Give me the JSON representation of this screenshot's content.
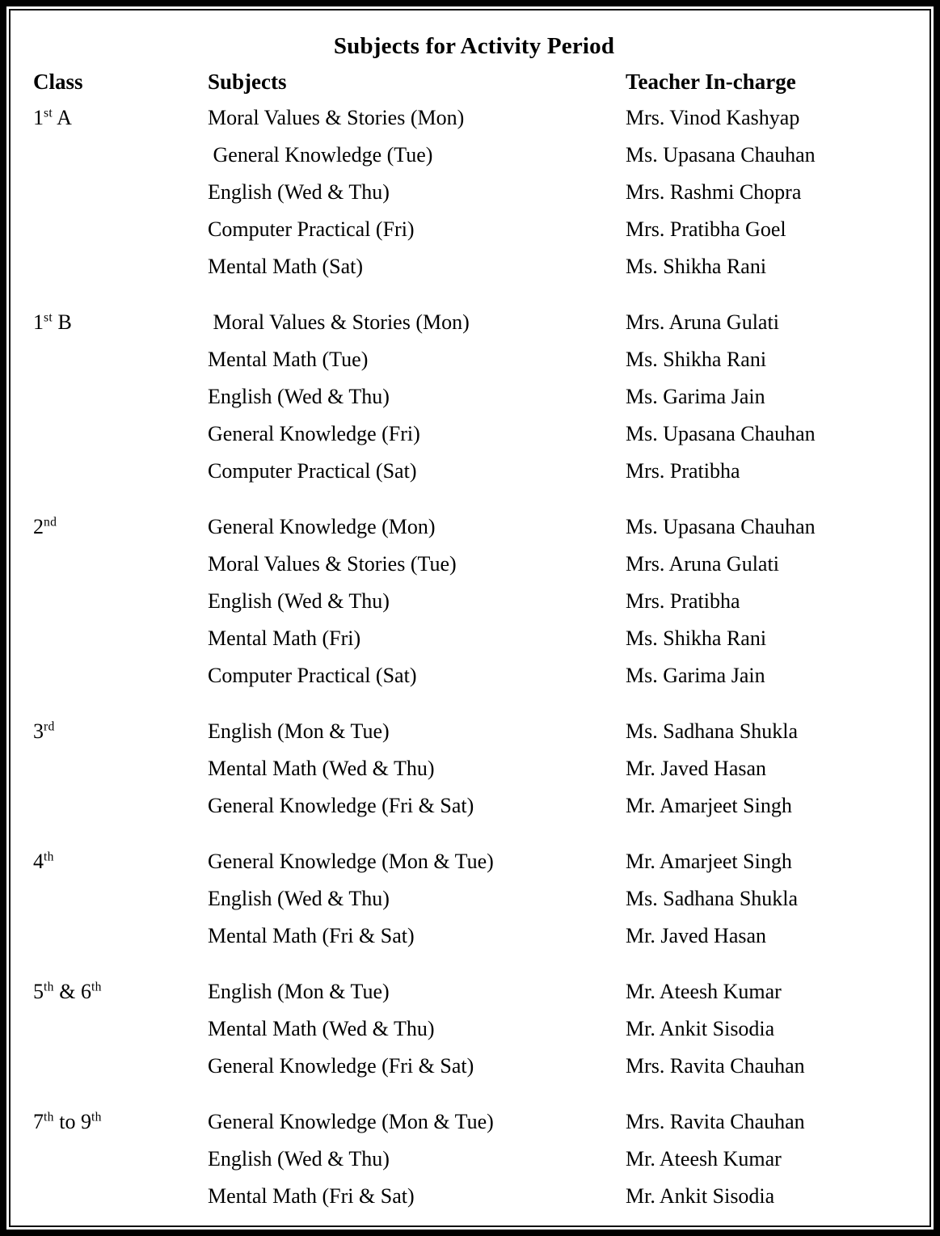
{
  "title": "Subjects for Activity Period",
  "headers": {
    "class": "Class",
    "subjects": "Subjects",
    "teacher": "Teacher In-charge"
  },
  "colors": {
    "text": "#000000",
    "background": "#ffffff",
    "border": "#000000"
  },
  "blocks": [
    {
      "class_label": [
        {
          "text": "1"
        },
        {
          "sup": "st"
        },
        {
          "text": " A"
        }
      ],
      "rows": [
        {
          "subject": "Moral Values & Stories (Mon)",
          "teacher": "Mrs. Vinod Kashyap"
        },
        {
          "subject": " General Knowledge (Tue)",
          "teacher": "Ms. Upasana Chauhan"
        },
        {
          "subject": "English (Wed & Thu)",
          "teacher": "Mrs. Rashmi Chopra"
        },
        {
          "subject": "Computer Practical (Fri)",
          "teacher": "Mrs. Pratibha Goel"
        },
        {
          "subject": "Mental Math (Sat)",
          "teacher": "Ms. Shikha Rani"
        }
      ]
    },
    {
      "class_label": [
        {
          "text": "1"
        },
        {
          "sup": "st"
        },
        {
          "text": " B"
        }
      ],
      "rows": [
        {
          "subject": " Moral Values & Stories (Mon)",
          "teacher": "Mrs. Aruna Gulati"
        },
        {
          "subject": "Mental Math (Tue)",
          "teacher": "Ms. Shikha Rani"
        },
        {
          "subject": "English (Wed & Thu)",
          "teacher": "Ms. Garima Jain"
        },
        {
          "subject": "General Knowledge (Fri)",
          "teacher": "Ms. Upasana Chauhan"
        },
        {
          "subject": "Computer Practical (Sat)",
          "teacher": "Mrs. Pratibha"
        }
      ]
    },
    {
      "class_label": [
        {
          "text": "2"
        },
        {
          "sup": "nd"
        }
      ],
      "rows": [
        {
          "subject": "General Knowledge (Mon)",
          "teacher": "Ms. Upasana Chauhan"
        },
        {
          "subject": "Moral Values & Stories (Tue)",
          "teacher": "Mrs. Aruna Gulati"
        },
        {
          "subject": "English (Wed & Thu)",
          "teacher": "Mrs. Pratibha"
        },
        {
          "subject": "Mental Math (Fri)",
          "teacher": "Ms. Shikha Rani"
        },
        {
          "subject": "Computer Practical (Sat)",
          "teacher": "Ms. Garima Jain"
        }
      ]
    },
    {
      "class_label": [
        {
          "text": "3"
        },
        {
          "sup": "rd"
        }
      ],
      "rows": [
        {
          "subject": "English (Mon & Tue)",
          "teacher": "Ms. Sadhana Shukla"
        },
        {
          "subject": "Mental Math (Wed & Thu)",
          "teacher": "Mr. Javed Hasan"
        },
        {
          "subject": "General Knowledge (Fri & Sat)",
          "teacher": "Mr. Amarjeet Singh"
        }
      ]
    },
    {
      "class_label": [
        {
          "text": "4"
        },
        {
          "sup": "th"
        }
      ],
      "rows": [
        {
          "subject": "General Knowledge (Mon & Tue)",
          "teacher": "Mr. Amarjeet Singh"
        },
        {
          "subject": "English (Wed & Thu)",
          "teacher": "Ms. Sadhana Shukla"
        },
        {
          "subject": "Mental Math (Fri & Sat)",
          "teacher": "Mr. Javed Hasan"
        }
      ]
    },
    {
      "class_label": [
        {
          "text": "5"
        },
        {
          "sup": "th"
        },
        {
          "text": " & 6"
        },
        {
          "sup": "th"
        }
      ],
      "rows": [
        {
          "subject": "English (Mon & Tue)",
          "teacher": "Mr. Ateesh Kumar"
        },
        {
          "subject": "Mental Math (Wed & Thu)",
          "teacher": "Mr. Ankit Sisodia"
        },
        {
          "subject": "General Knowledge (Fri & Sat)",
          "teacher": "Mrs. Ravita Chauhan"
        }
      ]
    },
    {
      "class_label": [
        {
          "text": "7"
        },
        {
          "sup": "th"
        },
        {
          "text": " to 9"
        },
        {
          "sup": "th"
        }
      ],
      "rows": [
        {
          "subject": "General Knowledge (Mon & Tue)",
          "teacher": "Mrs. Ravita Chauhan"
        },
        {
          "subject": "English (Wed & Thu)",
          "teacher": "Mr. Ateesh Kumar"
        },
        {
          "subject": "Mental Math (Fri & Sat)",
          "teacher": "Mr. Ankit Sisodia"
        }
      ]
    }
  ]
}
